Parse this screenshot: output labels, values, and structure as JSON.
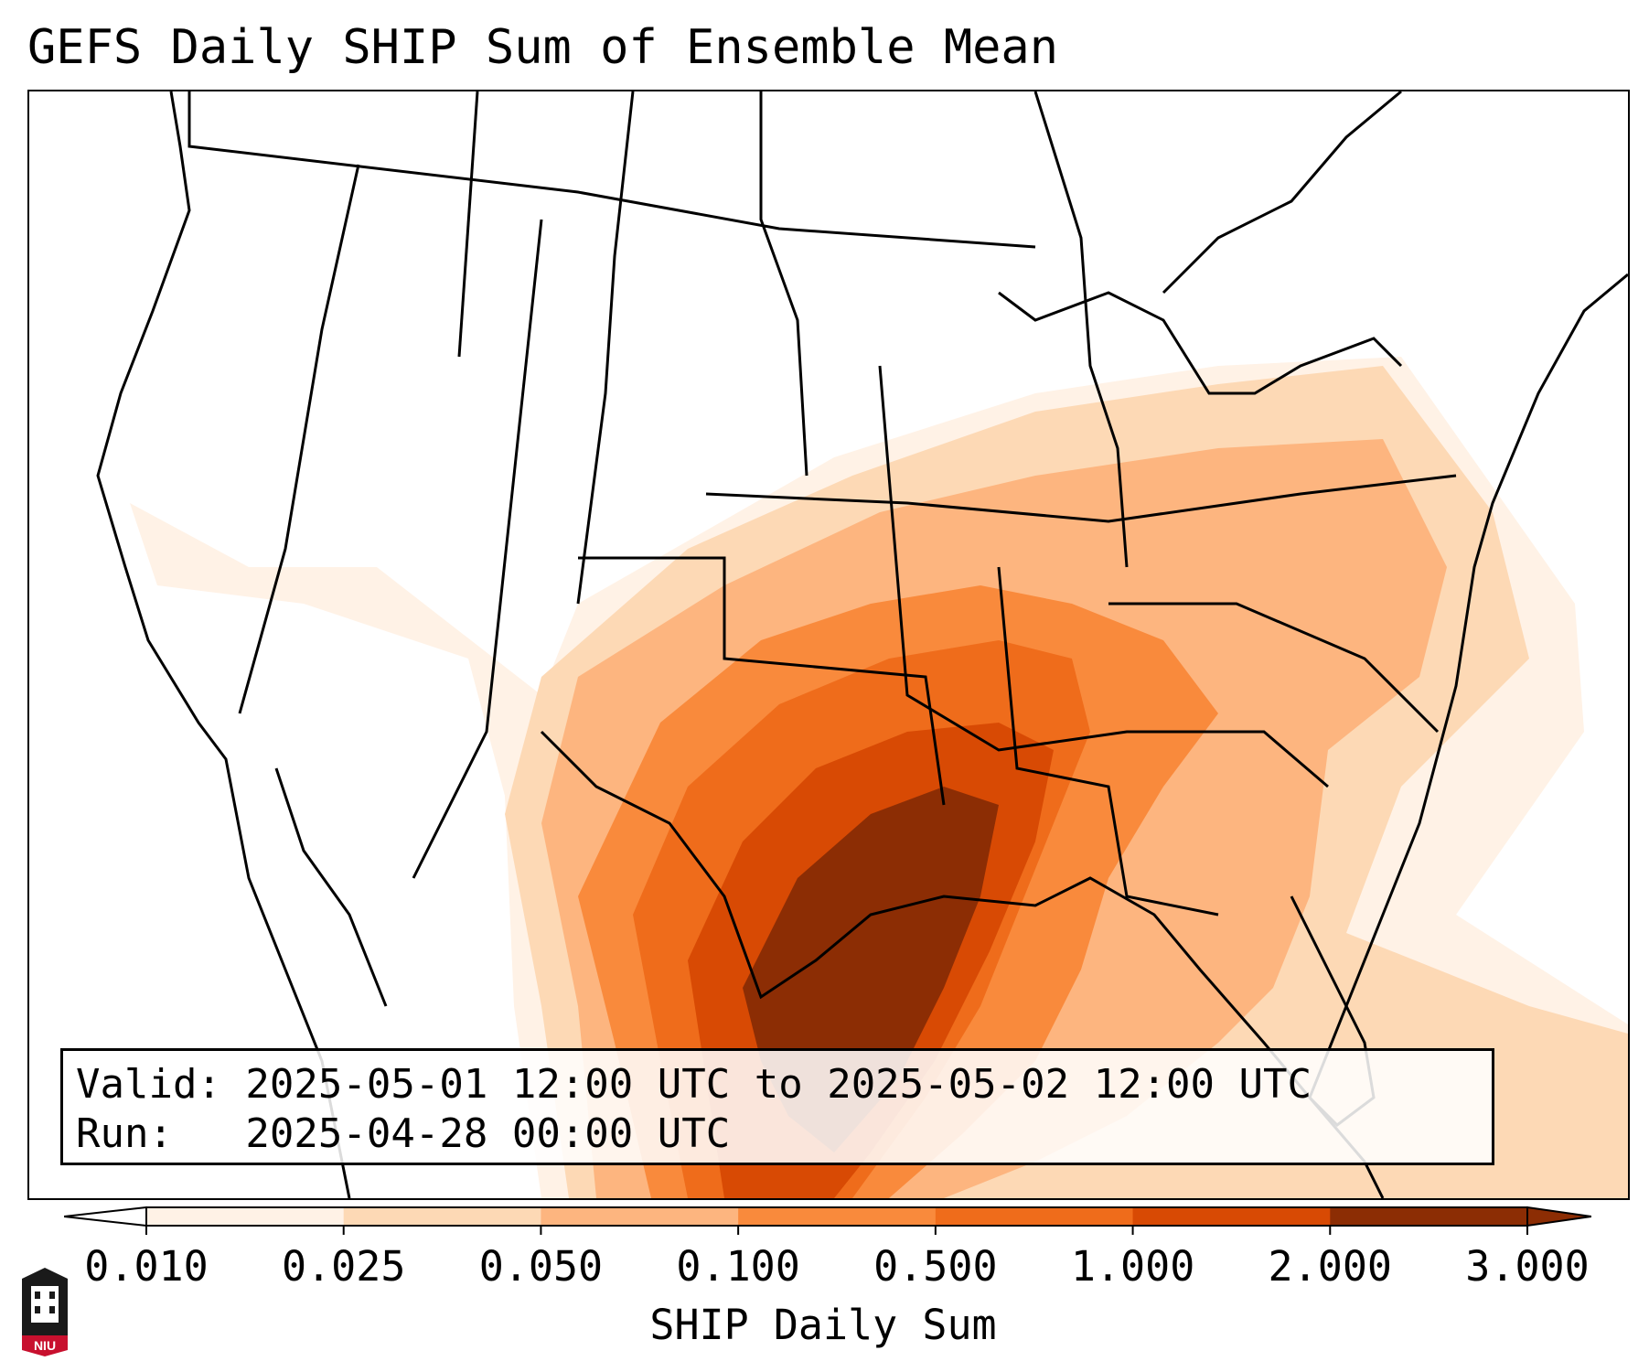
{
  "title": "GEFS Daily SHIP Sum of Ensemble Mean",
  "info": {
    "valid_line": "Valid: 2025-05-01 12:00 UTC to 2025-05-02 12:00 UTC",
    "run_line": "Run:   2025-04-28 00:00 UTC"
  },
  "colorbar": {
    "label": "SHIP Daily Sum",
    "ticks": [
      "0.010",
      "0.025",
      "0.050",
      "0.100",
      "0.500",
      "1.000",
      "2.000",
      "3.000"
    ],
    "colors": [
      "#fff2e6",
      "#fdd9b5",
      "#fdb57f",
      "#f98a3c",
      "#ef6c1b",
      "#d84a04",
      "#8c2d04"
    ]
  },
  "logo": {
    "text": "NIU"
  }
}
